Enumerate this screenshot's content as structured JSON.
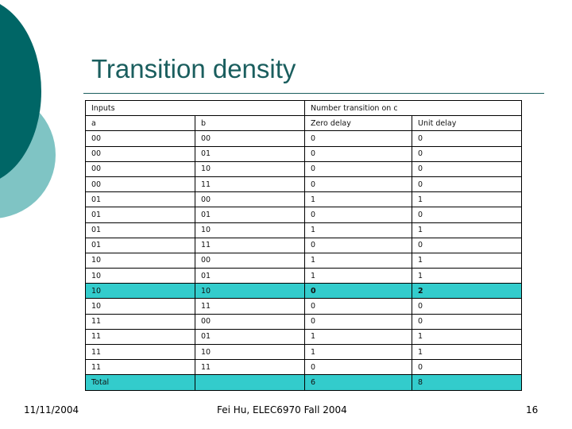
{
  "header": {
    "title": "Transition density"
  },
  "table": {
    "group_header": [
      "Inputs",
      "Number transition on c"
    ],
    "columns": [
      "a",
      "b",
      "Zero delay",
      "Unit delay"
    ],
    "rows": [
      [
        "00",
        "00",
        "0",
        "0"
      ],
      [
        "00",
        "01",
        "0",
        "0"
      ],
      [
        "00",
        "10",
        "0",
        "0"
      ],
      [
        "00",
        "11",
        "0",
        "0"
      ],
      [
        "01",
        "00",
        "1",
        "1"
      ],
      [
        "01",
        "01",
        "0",
        "0"
      ],
      [
        "01",
        "10",
        "1",
        "1"
      ],
      [
        "01",
        "11",
        "0",
        "0"
      ],
      [
        "10",
        "00",
        "1",
        "1"
      ],
      [
        "10",
        "01",
        "1",
        "1"
      ],
      [
        "10",
        "10",
        "0",
        "2"
      ],
      [
        "10",
        "11",
        "0",
        "0"
      ],
      [
        "11",
        "00",
        "0",
        "0"
      ],
      [
        "11",
        "01",
        "1",
        "1"
      ],
      [
        "11",
        "10",
        "1",
        "1"
      ],
      [
        "11",
        "11",
        "0",
        "0"
      ]
    ],
    "total": [
      "Total",
      "6",
      "8"
    ],
    "highlighted_rows": [
      10
    ],
    "highlight_color": "#33cccc"
  },
  "footer": {
    "date": "11/11/2004",
    "author": "Fei Hu, ELEC6970 Fall 2004",
    "page": "16"
  }
}
